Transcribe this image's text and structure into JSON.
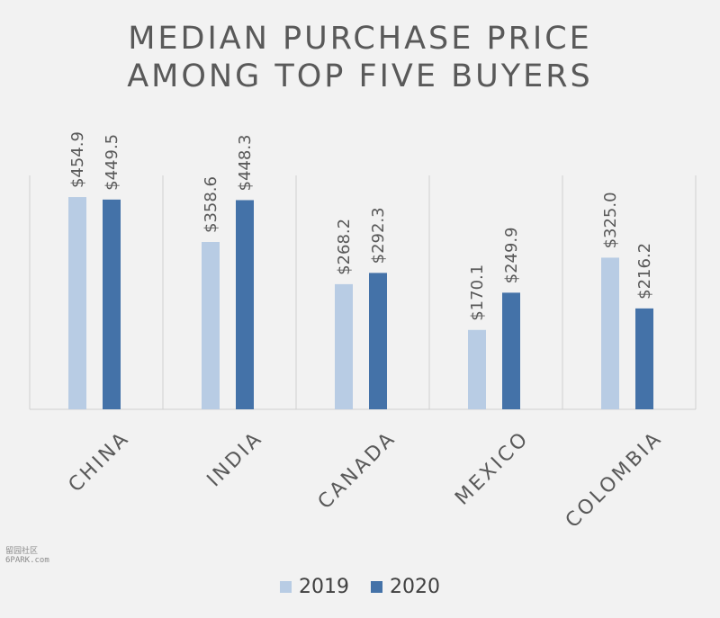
{
  "header": {
    "title_line1": "MEDIAN PURCHASE PRICE",
    "title_line2": "AMONG TOP FIVE BUYERS"
  },
  "watermark": {
    "line1": "留园社区",
    "line2": "6PARK.com"
  },
  "colors": {
    "series_2019": "#b8cce4",
    "series_2020": "#4472a8",
    "grid": "#d0d0d0",
    "label": "#595959"
  },
  "chart_data": {
    "type": "bar",
    "title": "MEDIAN PURCHASE PRICE AMONG TOP FIVE BUYERS",
    "categories": [
      "CHINA",
      "INDIA",
      "CANADA",
      "MEXICO",
      "COLOMBIA"
    ],
    "series": [
      {
        "name": "2019",
        "values": [
          454.9,
          358.6,
          268.2,
          170.1,
          325.0
        ],
        "labels": [
          "$454.9",
          "$358.6",
          "$268.2",
          "$170.1",
          "$325.0"
        ]
      },
      {
        "name": "2020",
        "values": [
          449.5,
          448.3,
          292.3,
          249.9,
          216.2
        ],
        "labels": [
          "$449.5",
          "$448.3",
          "$292.3",
          "$249.9",
          "$216.2"
        ]
      }
    ],
    "ylim": [
      0,
      455
    ],
    "grid": "vertical category separators",
    "legend_position": "bottom",
    "data_labels": "rotated vertical, above bars"
  }
}
